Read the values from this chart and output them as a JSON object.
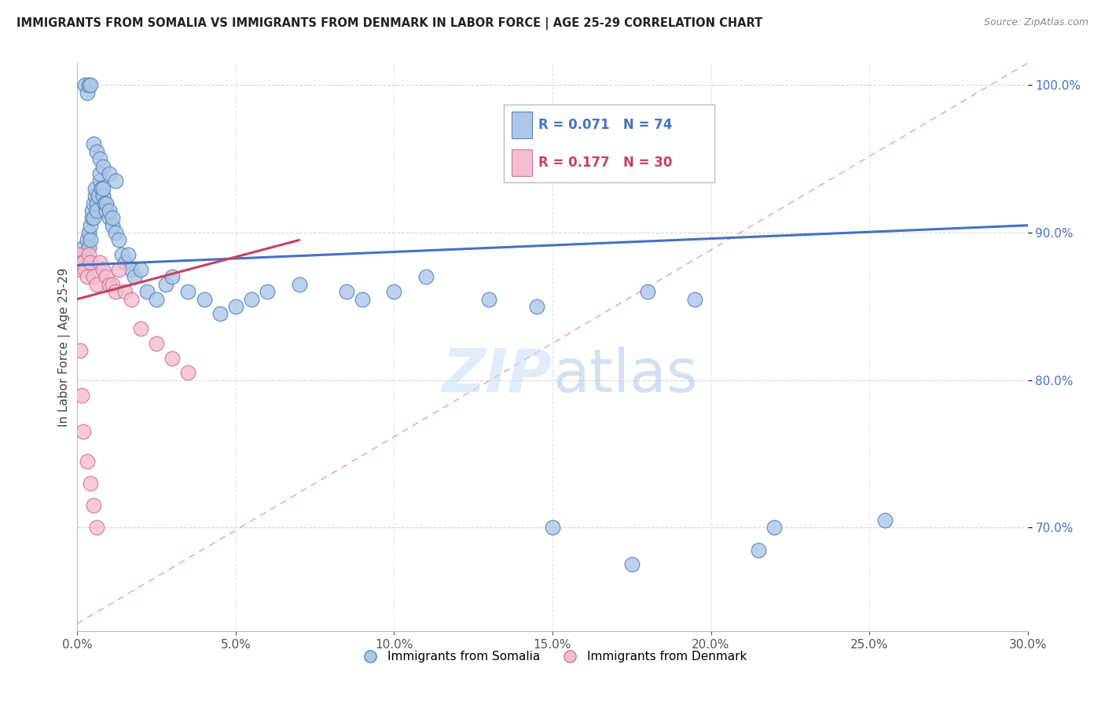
{
  "title": "IMMIGRANTS FROM SOMALIA VS IMMIGRANTS FROM DENMARK IN LABOR FORCE | AGE 25-29 CORRELATION CHART",
  "source": "Source: ZipAtlas.com",
  "ylabel": "In Labor Force | Age 25-29",
  "xlim": [
    0.0,
    30.0
  ],
  "ylim": [
    63.0,
    101.5
  ],
  "yticks": [
    70.0,
    80.0,
    90.0,
    100.0
  ],
  "xticks": [
    0.0,
    5.0,
    10.0,
    15.0,
    20.0,
    25.0,
    30.0
  ],
  "somalia_R": 0.071,
  "somalia_N": 74,
  "denmark_R": 0.177,
  "denmark_N": 30,
  "somalia_color": "#aec6e8",
  "somalia_edge": "#5588bb",
  "denmark_color": "#f5bdd0",
  "denmark_edge": "#cc7799",
  "somalia_trend_color": "#4472c4",
  "denmark_trend_color": "#c94060",
  "diagonal_color": "#e8a0b0",
  "background": "#ffffff",
  "legend_somalia": "Immigrants from Somalia",
  "legend_denmark": "Immigrants from Denmark",
  "somalia_x": [
    0.1,
    0.15,
    0.2,
    0.2,
    0.25,
    0.3,
    0.3,
    0.35,
    0.35,
    0.4,
    0.4,
    0.45,
    0.45,
    0.5,
    0.5,
    0.55,
    0.55,
    0.6,
    0.6,
    0.65,
    0.7,
    0.7,
    0.75,
    0.8,
    0.8,
    0.85,
    0.9,
    0.9,
    1.0,
    1.0,
    1.1,
    1.1,
    1.2,
    1.3,
    1.4,
    1.5,
    1.6,
    1.7,
    1.8,
    2.0,
    2.2,
    2.5,
    2.8,
    3.0,
    3.5,
    4.0,
    4.5,
    5.0,
    5.5,
    6.0,
    7.0,
    8.5,
    9.0,
    10.0,
    11.0,
    13.0,
    14.5,
    15.0,
    17.5,
    18.0,
    19.5,
    21.5,
    22.0,
    25.5,
    0.25,
    0.3,
    0.35,
    0.4,
    0.5,
    0.6,
    0.7,
    0.8,
    1.0,
    1.2
  ],
  "somalia_y": [
    88.5,
    88.0,
    88.5,
    89.0,
    88.0,
    88.0,
    89.5,
    89.0,
    90.0,
    89.5,
    90.5,
    91.0,
    91.5,
    91.0,
    92.0,
    92.5,
    93.0,
    92.0,
    91.5,
    92.5,
    93.5,
    94.0,
    93.0,
    92.5,
    93.0,
    92.0,
    91.5,
    92.0,
    91.0,
    91.5,
    90.5,
    91.0,
    90.0,
    89.5,
    88.5,
    88.0,
    88.5,
    87.5,
    87.0,
    87.5,
    86.0,
    85.5,
    86.5,
    87.0,
    86.0,
    85.5,
    84.5,
    85.0,
    85.5,
    86.0,
    86.5,
    86.0,
    85.5,
    86.0,
    87.0,
    85.5,
    85.0,
    70.0,
    67.5,
    86.0,
    85.5,
    68.5,
    70.0,
    70.5,
    100.0,
    99.5,
    100.0,
    100.0,
    96.0,
    95.5,
    95.0,
    94.5,
    94.0,
    93.5
  ],
  "denmark_x": [
    0.05,
    0.1,
    0.15,
    0.2,
    0.25,
    0.3,
    0.35,
    0.4,
    0.5,
    0.6,
    0.7,
    0.8,
    0.9,
    1.0,
    1.1,
    1.2,
    1.3,
    1.5,
    1.7,
    2.0,
    2.5,
    3.0,
    3.5,
    0.1,
    0.15,
    0.2,
    0.3,
    0.4,
    0.5,
    0.6
  ],
  "denmark_y": [
    88.5,
    87.5,
    88.0,
    88.0,
    87.5,
    87.0,
    88.5,
    88.0,
    87.0,
    86.5,
    88.0,
    87.5,
    87.0,
    86.5,
    86.5,
    86.0,
    87.5,
    86.0,
    85.5,
    83.5,
    82.5,
    81.5,
    80.5,
    82.0,
    79.0,
    76.5,
    74.5,
    73.0,
    71.5,
    70.0
  ],
  "somalia_trend_x0": 0.0,
  "somalia_trend_y0": 87.8,
  "somalia_trend_x1": 30.0,
  "somalia_trend_y1": 90.5,
  "denmark_trend_x0": 0.0,
  "denmark_trend_y0": 85.5,
  "denmark_trend_x1": 7.0,
  "denmark_trend_y1": 89.5,
  "diag_x0": 0.0,
  "diag_y0": 63.5,
  "diag_x1": 30.0,
  "diag_y1": 101.5
}
